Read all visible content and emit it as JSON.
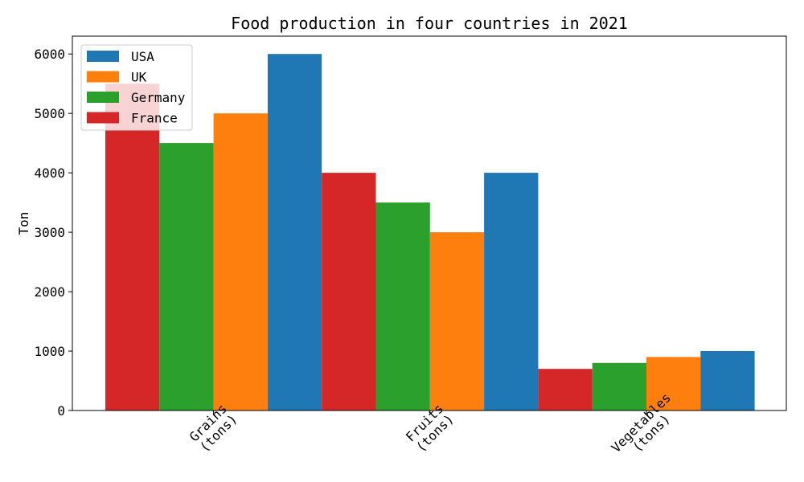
{
  "chart_data": {
    "type": "bar",
    "title": "Food production in four countries in 2021",
    "xlabel": "",
    "ylabel": "Ton",
    "categories": [
      "Grains\n(tons)",
      "Fruits\n(tons)",
      "Vegetables\n(tons)"
    ],
    "series": [
      {
        "name": "France",
        "color": "#d62728",
        "values": [
          5500,
          4000,
          700
        ]
      },
      {
        "name": "Germany",
        "color": "#2ca02c",
        "values": [
          4500,
          3500,
          800
        ]
      },
      {
        "name": "UK",
        "color": "#ff7f0e",
        "values": [
          5000,
          3000,
          900
        ]
      },
      {
        "name": "USA",
        "color": "#1f77b4",
        "values": [
          6000,
          4000,
          1000
        ]
      }
    ],
    "legend_order": [
      "USA",
      "UK",
      "Germany",
      "France"
    ],
    "legend_position": "top-left",
    "ylim": [
      0,
      6300
    ],
    "yticks": [
      0,
      1000,
      2000,
      3000,
      4000,
      5000,
      6000
    ],
    "grid": false
  }
}
